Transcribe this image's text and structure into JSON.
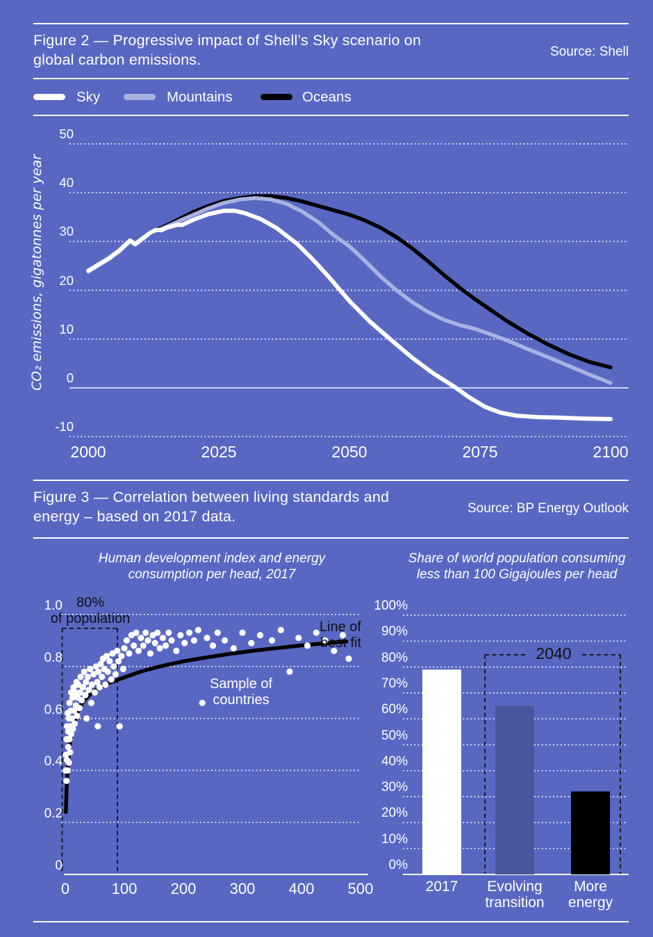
{
  "figure2": {
    "title_line1": "Figure 2 — Progressive impact of Shell’s Sky scenario on",
    "title_line2": "global carbon emissions.",
    "source": "Source: Shell",
    "legend": [
      {
        "label": "Sky",
        "color": "#ffffff"
      },
      {
        "label": "Mountains",
        "color": "#a9b2e0"
      },
      {
        "label": "Oceans",
        "color": "#000000"
      }
    ]
  },
  "figure3": {
    "title_line1": "Figure 3 — Correlation between living standards and",
    "title_line2": "energy – based on 2017 data.",
    "source": "Source: BP Energy Outlook"
  },
  "colors": {
    "background": "#5967c3",
    "mountains_line": "#a9b2e0",
    "sky_line": "#ffffff",
    "oceans_line": "#000000",
    "evolving_bar": "#49569b"
  },
  "chart_data": [
    {
      "type": "line",
      "title": "Progressive impact of Shell's Sky scenario on global carbon emissions",
      "ylabel": "CO₂ emissions, gigatonnes per year",
      "xlabel": "",
      "xlim": [
        2000,
        2100
      ],
      "ylim": [
        -10,
        50
      ],
      "grid": "dotted-horizontal",
      "y_ticks": [
        {
          "label": "50",
          "v": 50
        },
        {
          "label": "40",
          "v": 40
        },
        {
          "label": "30",
          "v": 30
        },
        {
          "label": "20",
          "v": 20
        },
        {
          "label": "10",
          "v": 10
        },
        {
          "label": "0",
          "v": 0
        },
        {
          "label": "-10",
          "v": -10
        }
      ],
      "x_ticks": [
        {
          "label": "2000",
          "v": 2000
        },
        {
          "label": "2025",
          "v": 2025
        },
        {
          "label": "2050",
          "v": 2050
        },
        {
          "label": "2075",
          "v": 2075
        },
        {
          "label": "2100",
          "v": 2100
        }
      ],
      "series": [
        {
          "name": "Sky",
          "color": "#ffffff",
          "points": [
            [
              2000,
              24.0
            ],
            [
              2002,
              25.3
            ],
            [
              2004,
              26.6
            ],
            [
              2006,
              28.2
            ],
            [
              2008,
              30.2
            ],
            [
              2009,
              29.5
            ],
            [
              2010,
              30.3
            ],
            [
              2012,
              31.9
            ],
            [
              2013,
              32.4
            ],
            [
              2014,
              32.3
            ],
            [
              2015,
              32.8
            ],
            [
              2017,
              33.4
            ],
            [
              2018,
              33.4
            ],
            [
              2020,
              34.4
            ],
            [
              2023,
              35.6
            ],
            [
              2026,
              36.3
            ],
            [
              2028,
              36.3
            ],
            [
              2030,
              35.8
            ],
            [
              2033,
              34.6
            ],
            [
              2036,
              32.8
            ],
            [
              2040,
              29.5
            ],
            [
              2043,
              26.3
            ],
            [
              2046,
              22.8
            ],
            [
              2050,
              17.8
            ],
            [
              2054,
              13.5
            ],
            [
              2058,
              9.8
            ],
            [
              2062,
              6.2
            ],
            [
              2066,
              3.0
            ],
            [
              2070,
              0.3
            ],
            [
              2073,
              -2.0
            ],
            [
              2076,
              -3.9
            ],
            [
              2079,
              -5.1
            ],
            [
              2082,
              -5.7
            ],
            [
              2086,
              -6.0
            ],
            [
              2090,
              -6.1
            ],
            [
              2095,
              -6.3
            ],
            [
              2100,
              -6.4
            ]
          ]
        },
        {
          "name": "Mountains",
          "color": "#a9b2e0",
          "points": [
            [
              2000,
              23.8
            ],
            [
              2002,
              25.1
            ],
            [
              2004,
              26.4
            ],
            [
              2006,
              28.0
            ],
            [
              2008,
              30.0
            ],
            [
              2009,
              29.3
            ],
            [
              2010,
              30.1
            ],
            [
              2012,
              31.9
            ],
            [
              2014,
              32.6
            ],
            [
              2016,
              33.5
            ],
            [
              2018,
              34.5
            ],
            [
              2020,
              35.4
            ],
            [
              2023,
              36.8
            ],
            [
              2026,
              37.9
            ],
            [
              2029,
              38.6
            ],
            [
              2032,
              38.9
            ],
            [
              2035,
              38.6
            ],
            [
              2038,
              37.7
            ],
            [
              2041,
              36.1
            ],
            [
              2044,
              34.0
            ],
            [
              2047,
              31.3
            ],
            [
              2050,
              29.0
            ],
            [
              2053,
              26.0
            ],
            [
              2056,
              22.8
            ],
            [
              2059,
              20.0
            ],
            [
              2062,
              17.6
            ],
            [
              2065,
              15.6
            ],
            [
              2068,
              14.0
            ],
            [
              2071,
              12.9
            ],
            [
              2074,
              12.1
            ],
            [
              2077,
              11.0
            ],
            [
              2080,
              9.8
            ],
            [
              2084,
              8.0
            ],
            [
              2088,
              6.3
            ],
            [
              2092,
              4.5
            ],
            [
              2096,
              2.7
            ],
            [
              2100,
              1.0
            ]
          ]
        },
        {
          "name": "Oceans",
          "color": "#000000",
          "points": [
            [
              2000,
              23.9
            ],
            [
              2002,
              25.2
            ],
            [
              2004,
              26.5
            ],
            [
              2006,
              28.1
            ],
            [
              2008,
              30.1
            ],
            [
              2009,
              29.4
            ],
            [
              2010,
              30.2
            ],
            [
              2012,
              32.0
            ],
            [
              2014,
              32.8
            ],
            [
              2016,
              33.8
            ],
            [
              2018,
              34.9
            ],
            [
              2020,
              36.0
            ],
            [
              2023,
              37.3
            ],
            [
              2026,
              38.3
            ],
            [
              2029,
              38.9
            ],
            [
              2032,
              39.3
            ],
            [
              2035,
              39.3
            ],
            [
              2038,
              38.9
            ],
            [
              2041,
              38.2
            ],
            [
              2044,
              37.3
            ],
            [
              2047,
              36.4
            ],
            [
              2050,
              35.5
            ],
            [
              2053,
              34.3
            ],
            [
              2056,
              32.8
            ],
            [
              2059,
              30.9
            ],
            [
              2062,
              28.6
            ],
            [
              2065,
              26.0
            ],
            [
              2068,
              23.2
            ],
            [
              2071,
              20.6
            ],
            [
              2074,
              18.2
            ],
            [
              2077,
              16.0
            ],
            [
              2080,
              13.8
            ],
            [
              2084,
              11.2
            ],
            [
              2088,
              8.9
            ],
            [
              2092,
              6.9
            ],
            [
              2096,
              5.3
            ],
            [
              2100,
              4.2
            ]
          ]
        }
      ]
    },
    {
      "type": "scatter",
      "title": "Human development index and energy consumption per head, 2017",
      "title_lines": [
        "Human development index and energy",
        "consumption per head, 2017"
      ],
      "xlim": [
        0,
        500
      ],
      "ylim": [
        0,
        1.0
      ],
      "grid": "dotted-horizontal",
      "y_ticks": [
        {
          "label": "1.0",
          "v": 1.0
        },
        {
          "label": "0.8",
          "v": 0.8
        },
        {
          "label": "0.6",
          "v": 0.6
        },
        {
          "label": "0.4",
          "v": 0.4
        },
        {
          "label": "0.2",
          "v": 0.2
        },
        {
          "label": "0",
          "v": 0
        }
      ],
      "x_ticks": [
        {
          "label": "0",
          "v": 0
        },
        {
          "label": "100",
          "v": 100
        },
        {
          "label": "200",
          "v": 200
        },
        {
          "label": "300",
          "v": 300
        },
        {
          "label": "400",
          "v": 400
        },
        {
          "label": "500",
          "v": 500
        }
      ],
      "annotations": {
        "pop_label_lines": [
          "80%",
          "of population"
        ],
        "best_fit_label_lines": [
          "Line of",
          "best fit"
        ],
        "sample_label_lines": [
          "Sample of",
          "countries"
        ]
      },
      "best_fit": [
        [
          1,
          0.24
        ],
        [
          2,
          0.32
        ],
        [
          4,
          0.41
        ],
        [
          7,
          0.49
        ],
        [
          12,
          0.56
        ],
        [
          20,
          0.62
        ],
        [
          30,
          0.665
        ],
        [
          45,
          0.7
        ],
        [
          60,
          0.722
        ],
        [
          80,
          0.742
        ],
        [
          100,
          0.758
        ],
        [
          130,
          0.782
        ],
        [
          160,
          0.8
        ],
        [
          200,
          0.82
        ],
        [
          240,
          0.835
        ],
        [
          280,
          0.849
        ],
        [
          320,
          0.861
        ],
        [
          360,
          0.871
        ],
        [
          400,
          0.881
        ],
        [
          440,
          0.889
        ],
        [
          476,
          0.896
        ]
      ],
      "points": [
        [
          1,
          0.4
        ],
        [
          1,
          0.46
        ],
        [
          2,
          0.36
        ],
        [
          2,
          0.52
        ],
        [
          3,
          0.44
        ],
        [
          3,
          0.57
        ],
        [
          4,
          0.4
        ],
        [
          4,
          0.62
        ],
        [
          5,
          0.49
        ],
        [
          5,
          0.55
        ],
        [
          6,
          0.43
        ],
        [
          6,
          0.6
        ],
        [
          7,
          0.52
        ],
        [
          7,
          0.66
        ],
        [
          8,
          0.47
        ],
        [
          8,
          0.57
        ],
        [
          9,
          0.63
        ],
        [
          10,
          0.54
        ],
        [
          10,
          0.7
        ],
        [
          11,
          0.6
        ],
        [
          12,
          0.68
        ],
        [
          13,
          0.56
        ],
        [
          14,
          0.72
        ],
        [
          15,
          0.63
        ],
        [
          16,
          0.58
        ],
        [
          17,
          0.7
        ],
        [
          18,
          0.65
        ],
        [
          19,
          0.74
        ],
        [
          20,
          0.61
        ],
        [
          21,
          0.68
        ],
        [
          22,
          0.73
        ],
        [
          24,
          0.64
        ],
        [
          25,
          0.7
        ],
        [
          26,
          0.76
        ],
        [
          28,
          0.67
        ],
        [
          30,
          0.72
        ],
        [
          32,
          0.78
        ],
        [
          34,
          0.69
        ],
        [
          35,
          0.74
        ],
        [
          36,
          0.6
        ],
        [
          38,
          0.76
        ],
        [
          40,
          0.71
        ],
        [
          42,
          0.79
        ],
        [
          44,
          0.66
        ],
        [
          45,
          0.73
        ],
        [
          48,
          0.77
        ],
        [
          50,
          0.7
        ],
        [
          52,
          0.8
        ],
        [
          54,
          0.74
        ],
        [
          55,
          0.57
        ],
        [
          56,
          0.78
        ],
        [
          58,
          0.72
        ],
        [
          60,
          0.81
        ],
        [
          62,
          0.76
        ],
        [
          64,
          0.83
        ],
        [
          66,
          0.79
        ],
        [
          68,
          0.73
        ],
        [
          70,
          0.84
        ],
        [
          72,
          0.78
        ],
        [
          75,
          0.82
        ],
        [
          78,
          0.75
        ],
        [
          80,
          0.85
        ],
        [
          82,
          0.8
        ],
        [
          85,
          0.77
        ],
        [
          88,
          0.86
        ],
        [
          90,
          0.82
        ],
        [
          92,
          0.57
        ],
        [
          95,
          0.84
        ],
        [
          98,
          0.79
        ],
        [
          100,
          0.87
        ],
        [
          104,
          0.9
        ],
        [
          108,
          0.85
        ],
        [
          112,
          0.92
        ],
        [
          116,
          0.88
        ],
        [
          120,
          0.93
        ],
        [
          124,
          0.86
        ],
        [
          128,
          0.91
        ],
        [
          132,
          0.88
        ],
        [
          136,
          0.93
        ],
        [
          140,
          0.9
        ],
        [
          144,
          0.85
        ],
        [
          148,
          0.92
        ],
        [
          152,
          0.89
        ],
        [
          156,
          0.93
        ],
        [
          160,
          0.87
        ],
        [
          165,
          0.91
        ],
        [
          170,
          0.88
        ],
        [
          175,
          0.93
        ],
        [
          180,
          0.9
        ],
        [
          188,
          0.86
        ],
        [
          195,
          0.92
        ],
        [
          202,
          0.89
        ],
        [
          210,
          0.93
        ],
        [
          218,
          0.9
        ],
        [
          225,
          0.94
        ],
        [
          232,
          0.66
        ],
        [
          240,
          0.91
        ],
        [
          250,
          0.88
        ],
        [
          258,
          0.93
        ],
        [
          270,
          0.9
        ],
        [
          285,
          0.87
        ],
        [
          300,
          0.93
        ],
        [
          315,
          0.89
        ],
        [
          330,
          0.92
        ],
        [
          350,
          0.9
        ],
        [
          365,
          0.94
        ],
        [
          380,
          0.78
        ],
        [
          395,
          0.91
        ],
        [
          410,
          0.88
        ],
        [
          425,
          0.93
        ],
        [
          440,
          0.9
        ],
        [
          455,
          0.86
        ],
        [
          470,
          0.92
        ],
        [
          480,
          0.83
        ]
      ]
    },
    {
      "type": "bar",
      "title": "Share of world population consuming less than 100 Gigajoules per head",
      "title_lines": [
        "Share of world population consuming",
        "less than 100 Gigajoules per head"
      ],
      "categories": [
        "2017",
        "Evolving transition",
        "More energy"
      ],
      "category_lines": [
        [
          "2017"
        ],
        [
          "Evolving",
          "transition"
        ],
        [
          "More",
          "energy"
        ]
      ],
      "values": [
        79,
        65,
        32
      ],
      "colors": [
        "#ffffff",
        "#49569b",
        "#000000"
      ],
      "ylim": [
        0,
        100
      ],
      "grid": "dotted-horizontal",
      "y_ticks": [
        {
          "label": "100%",
          "v": 100
        },
        {
          "label": "90%",
          "v": 90
        },
        {
          "label": "80%",
          "v": 80
        },
        {
          "label": "70%",
          "v": 70
        },
        {
          "label": "60%",
          "v": 60
        },
        {
          "label": "50%",
          "v": 50
        },
        {
          "label": "40%",
          "v": 40
        },
        {
          "label": "30%",
          "v": 30
        },
        {
          "label": "20%",
          "v": 20
        },
        {
          "label": "10%",
          "v": 10
        },
        {
          "label": "0%",
          "v": 0
        }
      ],
      "annotation_label": "2040"
    }
  ]
}
